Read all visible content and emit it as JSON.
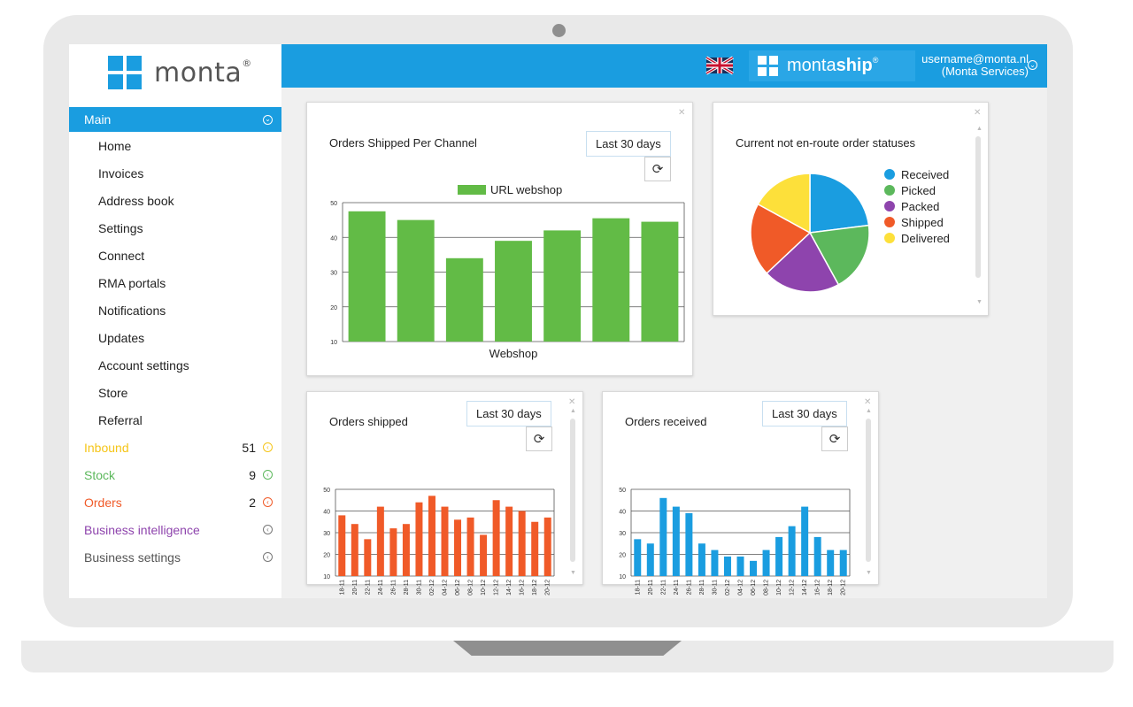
{
  "sidebar": {
    "logo_text": "monta",
    "logo_reg": "®",
    "main_label": "Main",
    "items": [
      "Home",
      "Invoices",
      "Address book",
      "Settings",
      "Connect",
      "RMA portals",
      "Notifications",
      "Updates",
      "Account settings",
      "Store",
      "Referral"
    ],
    "groups": [
      {
        "label": "Inbound",
        "count": "51",
        "color": "#f5c518"
      },
      {
        "label": "Stock",
        "count": "9",
        "color": "#5cb85c"
      },
      {
        "label": "Orders",
        "count": "2",
        "color": "#f05a28"
      },
      {
        "label": "Business intelligence",
        "count": "",
        "color": "#8e44ad"
      },
      {
        "label": "Business settings",
        "count": "",
        "color": "#555555"
      }
    ]
  },
  "header": {
    "brand_prefix": "monta",
    "brand_bold": "ship",
    "brand_reg": "®",
    "user_email": "username@monta.nl",
    "user_org": "(Monta Services)"
  },
  "widgets": {
    "channel": {
      "title": "Orders Shipped Per Channel",
      "range": "Last 30 days",
      "legend": "URL webshop",
      "xlabel": "Webshop"
    },
    "statuses": {
      "title": "Current not en-route order statuses"
    },
    "shipped": {
      "title": "Orders shipped",
      "range": "Last 30 days"
    },
    "received": {
      "title": "Orders received",
      "range": "Last 30 days"
    }
  },
  "chart_data": [
    {
      "type": "bar",
      "title": "Orders Shipped Per Channel",
      "xlabel": "Webshop",
      "series": [
        {
          "name": "URL webshop",
          "values": [
            47.5,
            45,
            34,
            39,
            42,
            45.5,
            44.5
          ]
        }
      ],
      "ylim": [
        10,
        50
      ],
      "yticks": [
        10,
        20,
        30,
        40,
        50
      ],
      "color": "#62bb46"
    },
    {
      "type": "pie",
      "title": "Current not en-route order statuses",
      "labels": [
        "Received",
        "Picked",
        "Packed",
        "Shipped",
        "Delivered"
      ],
      "values": [
        23,
        19,
        21,
        20,
        17
      ],
      "colors": [
        "#1a9de0",
        "#5cb85c",
        "#8e44ad",
        "#f05a28",
        "#fde03a"
      ]
    },
    {
      "type": "bar",
      "title": "Orders shipped",
      "categories": [
        "18-11",
        "20-11",
        "22-11",
        "24-11",
        "26-11",
        "28-11",
        "30-11",
        "02-12",
        "04-12",
        "06-12",
        "08-12",
        "10-12",
        "12-12",
        "14-12",
        "16-12",
        "18-12",
        "20-12"
      ],
      "series": [
        {
          "values": [
            38,
            34,
            27,
            42,
            32,
            34,
            44,
            47,
            42,
            36,
            37,
            29,
            45,
            42,
            40,
            35,
            37
          ]
        }
      ],
      "ylim": [
        10,
        50
      ],
      "yticks": [
        10,
        20,
        30,
        40,
        50
      ],
      "color": "#f05a28"
    },
    {
      "type": "bar",
      "title": "Orders received",
      "categories": [
        "18-11",
        "20-11",
        "22-11",
        "24-11",
        "26-11",
        "28-11",
        "30-11",
        "02-12",
        "04-12",
        "06-12",
        "08-12",
        "10-12",
        "12-12",
        "14-12",
        "16-12",
        "18-12",
        "20-12"
      ],
      "series": [
        {
          "values": [
            27,
            25,
            46,
            42,
            39,
            25,
            22,
            19,
            19,
            17,
            22,
            28,
            33,
            42,
            28,
            22,
            22
          ]
        }
      ],
      "ylim": [
        10,
        50
      ],
      "yticks": [
        10,
        20,
        30,
        40,
        50
      ],
      "color": "#1a9de0"
    }
  ]
}
